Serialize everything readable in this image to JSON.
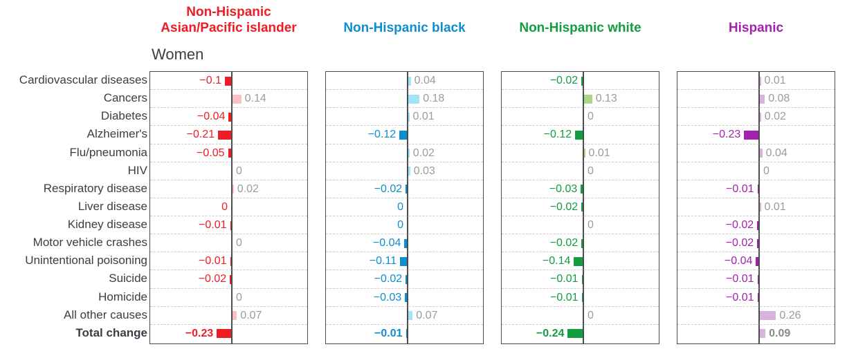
{
  "title": "Women",
  "colors": {
    "grid": "#cbcbcb",
    "panel_border": "#4b4b4b",
    "axis": "#4b4b4b",
    "row_label": "#383e45",
    "positive_label": "#9b9b9b",
    "positive_label_bold": "#8a8a8a"
  },
  "groups": [
    {
      "name": "Non-Hispanic Asian/Pacific islander",
      "header_lines": [
        "Non-Hispanic",
        "Asian/Pacific islander"
      ],
      "color": "#ee1c24",
      "light_color": "#f8c1c4"
    },
    {
      "name": "Non-Hispanic black",
      "header_lines": [
        "Non-Hispanic black"
      ],
      "color": "#0f8ecf",
      "light_color": "#a3e2f8"
    },
    {
      "name": "Non-Hispanic white",
      "header_lines": [
        "Non-Hispanic white"
      ],
      "color": "#149c40",
      "light_color": "#abd685"
    },
    {
      "name": "Hispanic",
      "header_lines": [
        "Hispanic"
      ],
      "color": "#a123ac",
      "light_color": "#d9b3dc"
    }
  ],
  "chart_data": {
    "type": "bar",
    "variant": "horizontal-diverging-small-multiples",
    "title": "Women",
    "gridlines": "dashed",
    "axis_center": 0,
    "categories": [
      "Cardiovascular diseases",
      "Cancers",
      "Diabetes",
      "Alzheimer's",
      "Flu/pneumonia",
      "HIV",
      "Respiratory disease",
      "Liver disease",
      "Kidney disease",
      "Motor vehicle crashes",
      "Unintentional poisoning",
      "Suicide",
      "Homicide",
      "All other causes",
      "Total change"
    ],
    "series": [
      {
        "name": "Non-Hispanic Asian/Pacific islander",
        "cells": [
          {
            "label": "−0.1",
            "value": -0.1
          },
          {
            "label": "0.14",
            "value": 0.14
          },
          {
            "label": "−0.04",
            "value": -0.04
          },
          {
            "label": "−0.21",
            "value": -0.21
          },
          {
            "label": "−0.05",
            "value": -0.05
          },
          {
            "label": "0",
            "value": 0,
            "side": "pos"
          },
          {
            "label": "0.02",
            "value": 0.02
          },
          {
            "label": "0",
            "value": 0,
            "side": "neg"
          },
          {
            "label": "−0.01",
            "value": -0.01
          },
          {
            "label": "0",
            "value": 0,
            "side": "pos"
          },
          {
            "label": "−0.01",
            "value": -0.01
          },
          {
            "label": "−0.02",
            "value": -0.02
          },
          {
            "label": "0",
            "value": 0,
            "side": "pos"
          },
          {
            "label": "0.07",
            "value": 0.07
          },
          {
            "label": "−0.23",
            "value": -0.23
          }
        ]
      },
      {
        "name": "Non-Hispanic black",
        "cells": [
          {
            "label": "0.04",
            "value": 0.04
          },
          {
            "label": "0.18",
            "value": 0.18
          },
          {
            "label": "0.01",
            "value": 0.01
          },
          {
            "label": "−0.12",
            "value": -0.12
          },
          {
            "label": "0.02",
            "value": 0.02
          },
          {
            "label": "0.03",
            "value": 0.03
          },
          {
            "label": "−0.02",
            "value": -0.02
          },
          {
            "label": "0",
            "value": 0,
            "side": "neg"
          },
          {
            "label": "0",
            "value": 0,
            "side": "neg"
          },
          {
            "label": "−0.04",
            "value": -0.04
          },
          {
            "label": "−0.11",
            "value": -0.11
          },
          {
            "label": "−0.02",
            "value": -0.02
          },
          {
            "label": "−0.03",
            "value": -0.03
          },
          {
            "label": "0.07",
            "value": 0.07
          },
          {
            "label": "−0.01",
            "value": -0.01
          }
        ]
      },
      {
        "name": "Non-Hispanic white",
        "cells": [
          {
            "label": "−0.02",
            "value": -0.02
          },
          {
            "label": "0.13",
            "value": 0.13
          },
          {
            "label": "0",
            "value": 0,
            "side": "pos"
          },
          {
            "label": "−0.12",
            "value": -0.12
          },
          {
            "label": "0.01",
            "value": 0.01
          },
          {
            "label": "0",
            "value": 0,
            "side": "pos"
          },
          {
            "label": "−0.03",
            "value": -0.03
          },
          {
            "label": "−0.02",
            "value": -0.02
          },
          {
            "label": "0",
            "value": 0,
            "side": "pos"
          },
          {
            "label": "−0.02",
            "value": -0.02
          },
          {
            "label": "−0.14",
            "value": -0.14
          },
          {
            "label": "−0.01",
            "value": -0.01
          },
          {
            "label": "−0.01",
            "value": -0.01
          },
          {
            "label": "0",
            "value": 0,
            "side": "pos"
          },
          {
            "label": "−0.24",
            "value": -0.24
          }
        ]
      },
      {
        "name": "Hispanic",
        "cells": [
          {
            "label": "0.01",
            "value": 0.01
          },
          {
            "label": "0.08",
            "value": 0.08
          },
          {
            "label": "0.02",
            "value": 0.02
          },
          {
            "label": "−0.23",
            "value": -0.23
          },
          {
            "label": "0.04",
            "value": 0.04
          },
          {
            "label": "0",
            "value": 0,
            "side": "pos"
          },
          {
            "label": "−0.01",
            "value": -0.01
          },
          {
            "label": "0.01",
            "value": 0.01
          },
          {
            "label": "−0.02",
            "value": -0.02
          },
          {
            "label": "−0.02",
            "value": -0.02
          },
          {
            "label": "−0.04",
            "value": -0.04
          },
          {
            "label": "−0.01",
            "value": -0.01
          },
          {
            "label": "−0.01",
            "value": -0.01
          },
          {
            "label": "0.26",
            "value": 0.26
          },
          {
            "label": "0.09",
            "value": 0.09
          }
        ]
      }
    ]
  }
}
